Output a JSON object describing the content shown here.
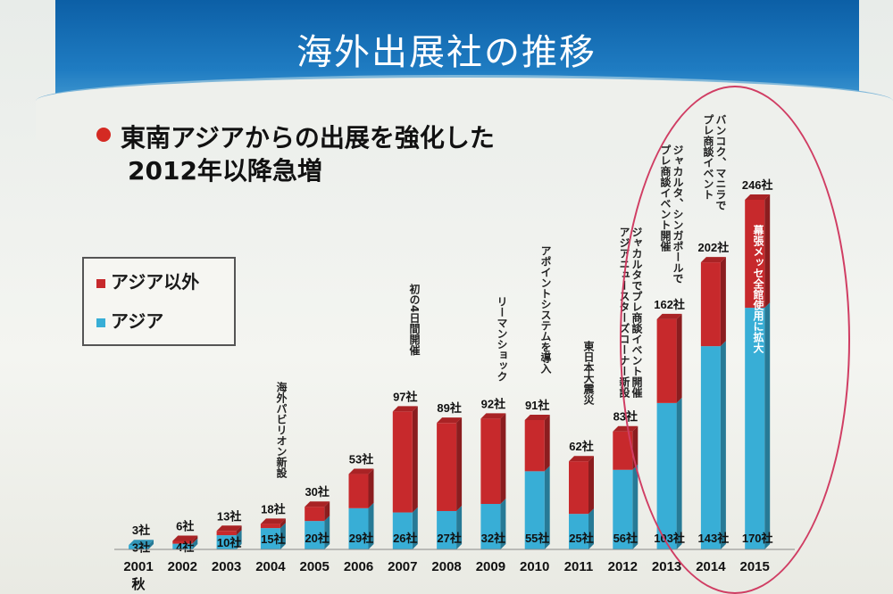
{
  "title": "海外出展社の推移",
  "subtitle": [
    "東南アジアからの出展を強化した",
    "2012年以降急増"
  ],
  "legend": {
    "other_label": "アジア以外",
    "asia_label": "アジア"
  },
  "colors": {
    "asia": "#38aed6",
    "other": "#c7292c",
    "title_bg": "#1868b0",
    "oval": "#d03d63"
  },
  "chart_data": {
    "type": "bar",
    "stacked": true,
    "categories": [
      "2001",
      "2002",
      "2003",
      "2004",
      "2005",
      "2006",
      "2007",
      "2008",
      "2009",
      "2010",
      "2011",
      "2012",
      "2013",
      "2014",
      "2015"
    ],
    "category_sublabels": [
      "秋",
      "",
      "",
      "",
      "",
      "",
      "",
      "",
      "",
      "",
      "",
      "",
      "",
      "",
      ""
    ],
    "series": [
      {
        "name": "アジア",
        "values": [
          3,
          4,
          10,
          15,
          20,
          29,
          26,
          27,
          32,
          55,
          25,
          56,
          103,
          143,
          170
        ]
      },
      {
        "name": "アジア以外",
        "values": [
          0,
          2,
          3,
          3,
          10,
          24,
          71,
          62,
          60,
          36,
          37,
          27,
          59,
          59,
          76
        ]
      }
    ],
    "totals": [
      3,
      6,
      13,
      18,
      30,
      53,
      97,
      89,
      92,
      91,
      62,
      83,
      162,
      202,
      246
    ],
    "total_labels": [
      "3社",
      "6社",
      "13社",
      "18社",
      "30社",
      "53社",
      "97社",
      "89社",
      "92社",
      "91社",
      "62社",
      "83社",
      "162社",
      "202社",
      "246社"
    ],
    "asia_labels": [
      "3社",
      "4社",
      "10社",
      "15社",
      "20社",
      "29社",
      "26社",
      "27社",
      "32社",
      "55社",
      "25社",
      "56社",
      "103社",
      "143社",
      "170社"
    ],
    "ylim": [
      0,
      246
    ]
  },
  "annotations": {
    "y2004": "海外パビリオン新設",
    "y2007": "初の4日間開催",
    "y2009": "リーマンショック",
    "y2010": "アポイントシステムを導入",
    "y2011": "東日本大震災",
    "y2012": [
      "ジャカルタでプレ商談イベント開催",
      "アジアニュースターズコーナー新設"
    ],
    "y2013": [
      "ジャカルタ、シンガポールで",
      "プレ商談イベント開催"
    ],
    "y2014": [
      "バンコク、マニラで",
      "プレ商談イベント"
    ],
    "y2015": "幕張メッセ全館使用に拡大"
  }
}
